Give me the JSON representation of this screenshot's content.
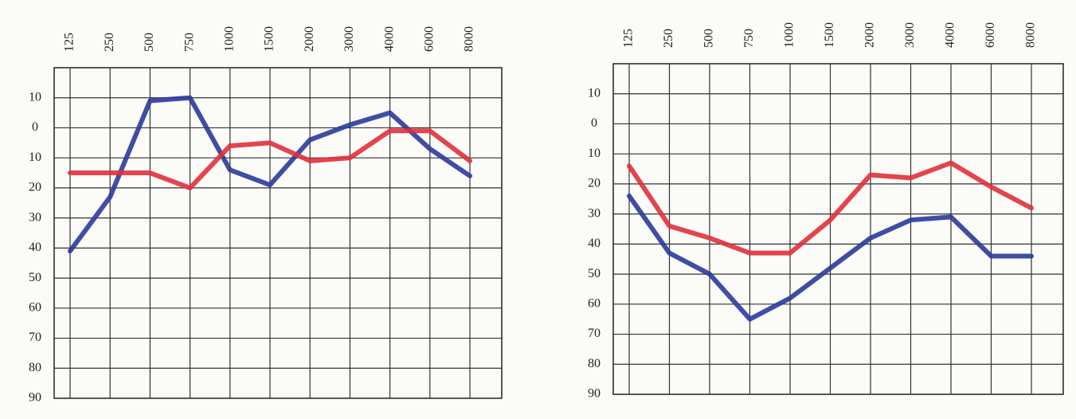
{
  "chart_data": [
    {
      "type": "line",
      "categories": [
        "125",
        "250",
        "500",
        "750",
        "1000",
        "1500",
        "2000",
        "3000",
        "4000",
        "6000",
        "8000"
      ],
      "ylim": [
        -20,
        90
      ],
      "y_inverted": true,
      "grid": true,
      "yticks": [
        {
          "value": -10,
          "label": "10"
        },
        0,
        10,
        20,
        30,
        40,
        50,
        60,
        70,
        80,
        90
      ],
      "series": [
        {
          "color": "#2b3a9a",
          "values": [
            41,
            23,
            -9,
            -10,
            14,
            19,
            4,
            -1,
            -5,
            7,
            16
          ]
        },
        {
          "color": "#e0303a",
          "values": [
            15,
            15,
            15,
            20,
            6,
            5,
            11,
            10,
            1,
            1,
            11
          ]
        }
      ]
    },
    {
      "type": "line",
      "categories": [
        "125",
        "250",
        "500",
        "750",
        "1000",
        "1500",
        "2000",
        "3000",
        "4000",
        "6000",
        "8000"
      ],
      "ylim": [
        -20,
        90
      ],
      "y_inverted": true,
      "grid": true,
      "yticks": [
        {
          "value": -10,
          "label": "10"
        },
        0,
        10,
        20,
        30,
        40,
        50,
        60,
        70,
        80,
        90
      ],
      "series": [
        {
          "color": "#2b3a9a",
          "values": [
            24,
            43,
            50,
            65,
            58,
            48,
            38,
            32,
            31,
            44,
            44
          ]
        },
        {
          "color": "#e0303a",
          "values": [
            14,
            34,
            38,
            43,
            43,
            32,
            17,
            18,
            13,
            21,
            28
          ]
        }
      ]
    }
  ]
}
